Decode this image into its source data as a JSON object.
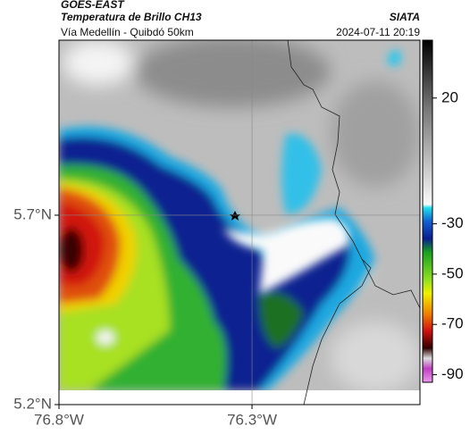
{
  "header": {
    "source": "GOES-EAST",
    "title": "Temperatura de Brillo CH13",
    "agency": "SIATA",
    "subtitle": "Vía Medellín - Quibdó 50km",
    "datetime": "2024-07-11 20:19"
  },
  "map": {
    "xlim": [
      -76.8,
      -75.865
    ],
    "ylim": [
      5.2,
      6.162
    ],
    "xticks": [
      {
        "value": -76.8,
        "label": "76.8°W"
      },
      {
        "value": -76.3,
        "label": "76.3°W"
      }
    ],
    "yticks": [
      {
        "value": 5.7,
        "label": "5.7°N"
      },
      {
        "value": 5.2,
        "label": "5.2°N"
      }
    ],
    "grid": true
  },
  "colorbar": {
    "lim": [
      -93,
      43
    ],
    "ticks": [
      20,
      -30,
      -50,
      -70,
      -90
    ]
  }
}
